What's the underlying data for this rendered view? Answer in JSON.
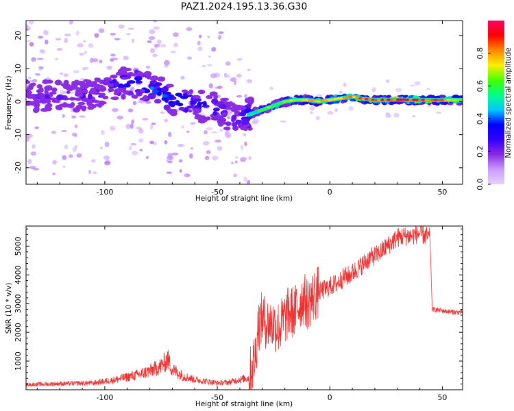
{
  "figure": {
    "title": "PAZ1.2024.195.13.36.G30"
  },
  "chart_data": [
    {
      "type": "heatmap",
      "xlabel": "Height of straight line (km)",
      "ylabel": "Frequency (Hz)",
      "xlim": [
        -135,
        59
      ],
      "ylim": [
        -25,
        24.5
      ],
      "xticks": [
        -100,
        -50,
        0,
        50
      ],
      "yticks": [
        -20,
        -10,
        0,
        10,
        20
      ],
      "colorbar": {
        "label": "Normalized spectral amplitude",
        "range": [
          0.0,
          1.0
        ],
        "ticks": [
          0.0,
          0.2,
          0.4,
          0.6,
          0.8
        ],
        "colormap": [
          "#e6d2ff",
          "#c89bff",
          "#8a2be2",
          "#3300ff",
          "#0000ff",
          "#00c8ff",
          "#00ff88",
          "#44ff00",
          "#ffee00",
          "#ff8800",
          "#ff0000",
          "#ff0066"
        ]
      },
      "ridge": {
        "x": [
          -135,
          -120,
          -105,
          -95,
          -88,
          -80,
          -70,
          -60,
          -52,
          -45,
          -40,
          -36,
          -32,
          -28,
          -24,
          -20,
          -15,
          -10,
          -5,
          0,
          5,
          10,
          15,
          20,
          30,
          40,
          50,
          59
        ],
        "frequency": [
          2,
          1.5,
          2,
          5,
          6,
          4,
          1,
          -1,
          -2,
          -4,
          -6,
          -4,
          -3,
          -2,
          -1,
          0,
          0.5,
          0.5,
          0,
          0.5,
          1,
          1.5,
          0.8,
          0.5,
          0.6,
          0.5,
          0.5,
          0.5
        ],
        "amplitude": [
          0.25,
          0.25,
          0.3,
          0.35,
          0.4,
          0.45,
          0.45,
          0.4,
          0.35,
          0.35,
          0.3,
          0.45,
          0.55,
          0.6,
          0.62,
          0.68,
          0.72,
          0.75,
          0.75,
          0.78,
          0.78,
          0.8,
          0.82,
          0.85,
          0.88,
          0.9,
          0.8,
          0.7
        ]
      }
    },
    {
      "type": "line",
      "xlabel": "Height of straight line (km)",
      "ylabel": "SNR (10 * v/v)",
      "xlim": [
        -135,
        59
      ],
      "ylim": [
        0,
        5700
      ],
      "xticks": [
        -100,
        -50,
        0,
        50
      ],
      "yticks": [
        1000,
        2000,
        3000,
        4000,
        5000
      ],
      "color": "#ee3333",
      "series": [
        {
          "x": [
            -135,
            -120,
            -105,
            -95,
            -85,
            -80,
            -75,
            -72,
            -70,
            -65,
            -60,
            -55,
            -50,
            -45,
            -40,
            -36,
            -35,
            -33,
            -32,
            -30,
            -28,
            -26,
            -24,
            -22,
            -20,
            -18,
            -16,
            -14,
            -12,
            -10,
            -8,
            -5,
            -2,
            0,
            3,
            6,
            9,
            12,
            15,
            18,
            21,
            24,
            27,
            30,
            33,
            36,
            40,
            44,
            44.5,
            45.5,
            50,
            55,
            59
          ],
          "y": [
            150,
            180,
            200,
            300,
            450,
            550,
            700,
            900,
            600,
            400,
            300,
            250,
            200,
            220,
            300,
            350,
            700,
            1200,
            2200,
            2500,
            2300,
            2300,
            2200,
            2200,
            2500,
            2700,
            2700,
            2900,
            3200,
            3000,
            3200,
            3400,
            3500,
            3600,
            3700,
            3900,
            4000,
            4200,
            4400,
            4600,
            4700,
            4900,
            5100,
            5300,
            5350,
            5350,
            5450,
            5300,
            5300,
            2800,
            2750,
            2700,
            2700
          ]
        }
      ]
    }
  ]
}
